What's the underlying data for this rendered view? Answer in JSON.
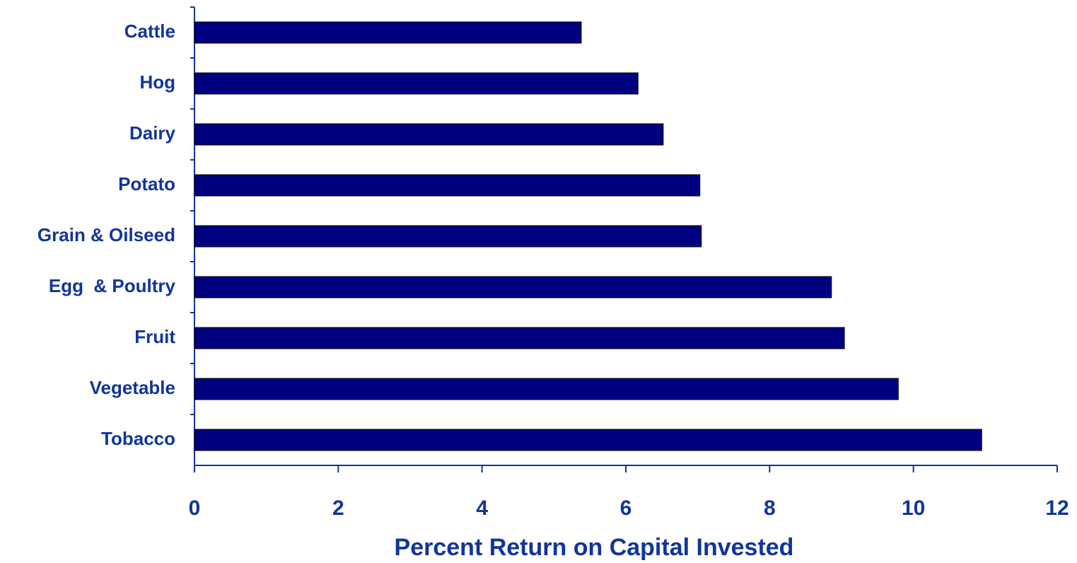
{
  "chart_data": {
    "type": "bar",
    "orientation": "horizontal",
    "x_label": "Percent Return on Capital Invested",
    "categories": [
      "Cattle",
      "Hog",
      "Dairy",
      "Potato",
      "Grain & Oilseed",
      "Egg  & Poultry",
      "Fruit",
      "Vegetable",
      "Tobacco"
    ],
    "values": [
      5.38,
      6.17,
      6.52,
      7.03,
      7.05,
      8.86,
      9.04,
      9.79,
      10.95
    ],
    "color": "#000080",
    "xlim": [
      0,
      12
    ],
    "xticks": [
      0,
      2,
      4,
      6,
      8,
      10,
      12
    ],
    "grid": false
  }
}
